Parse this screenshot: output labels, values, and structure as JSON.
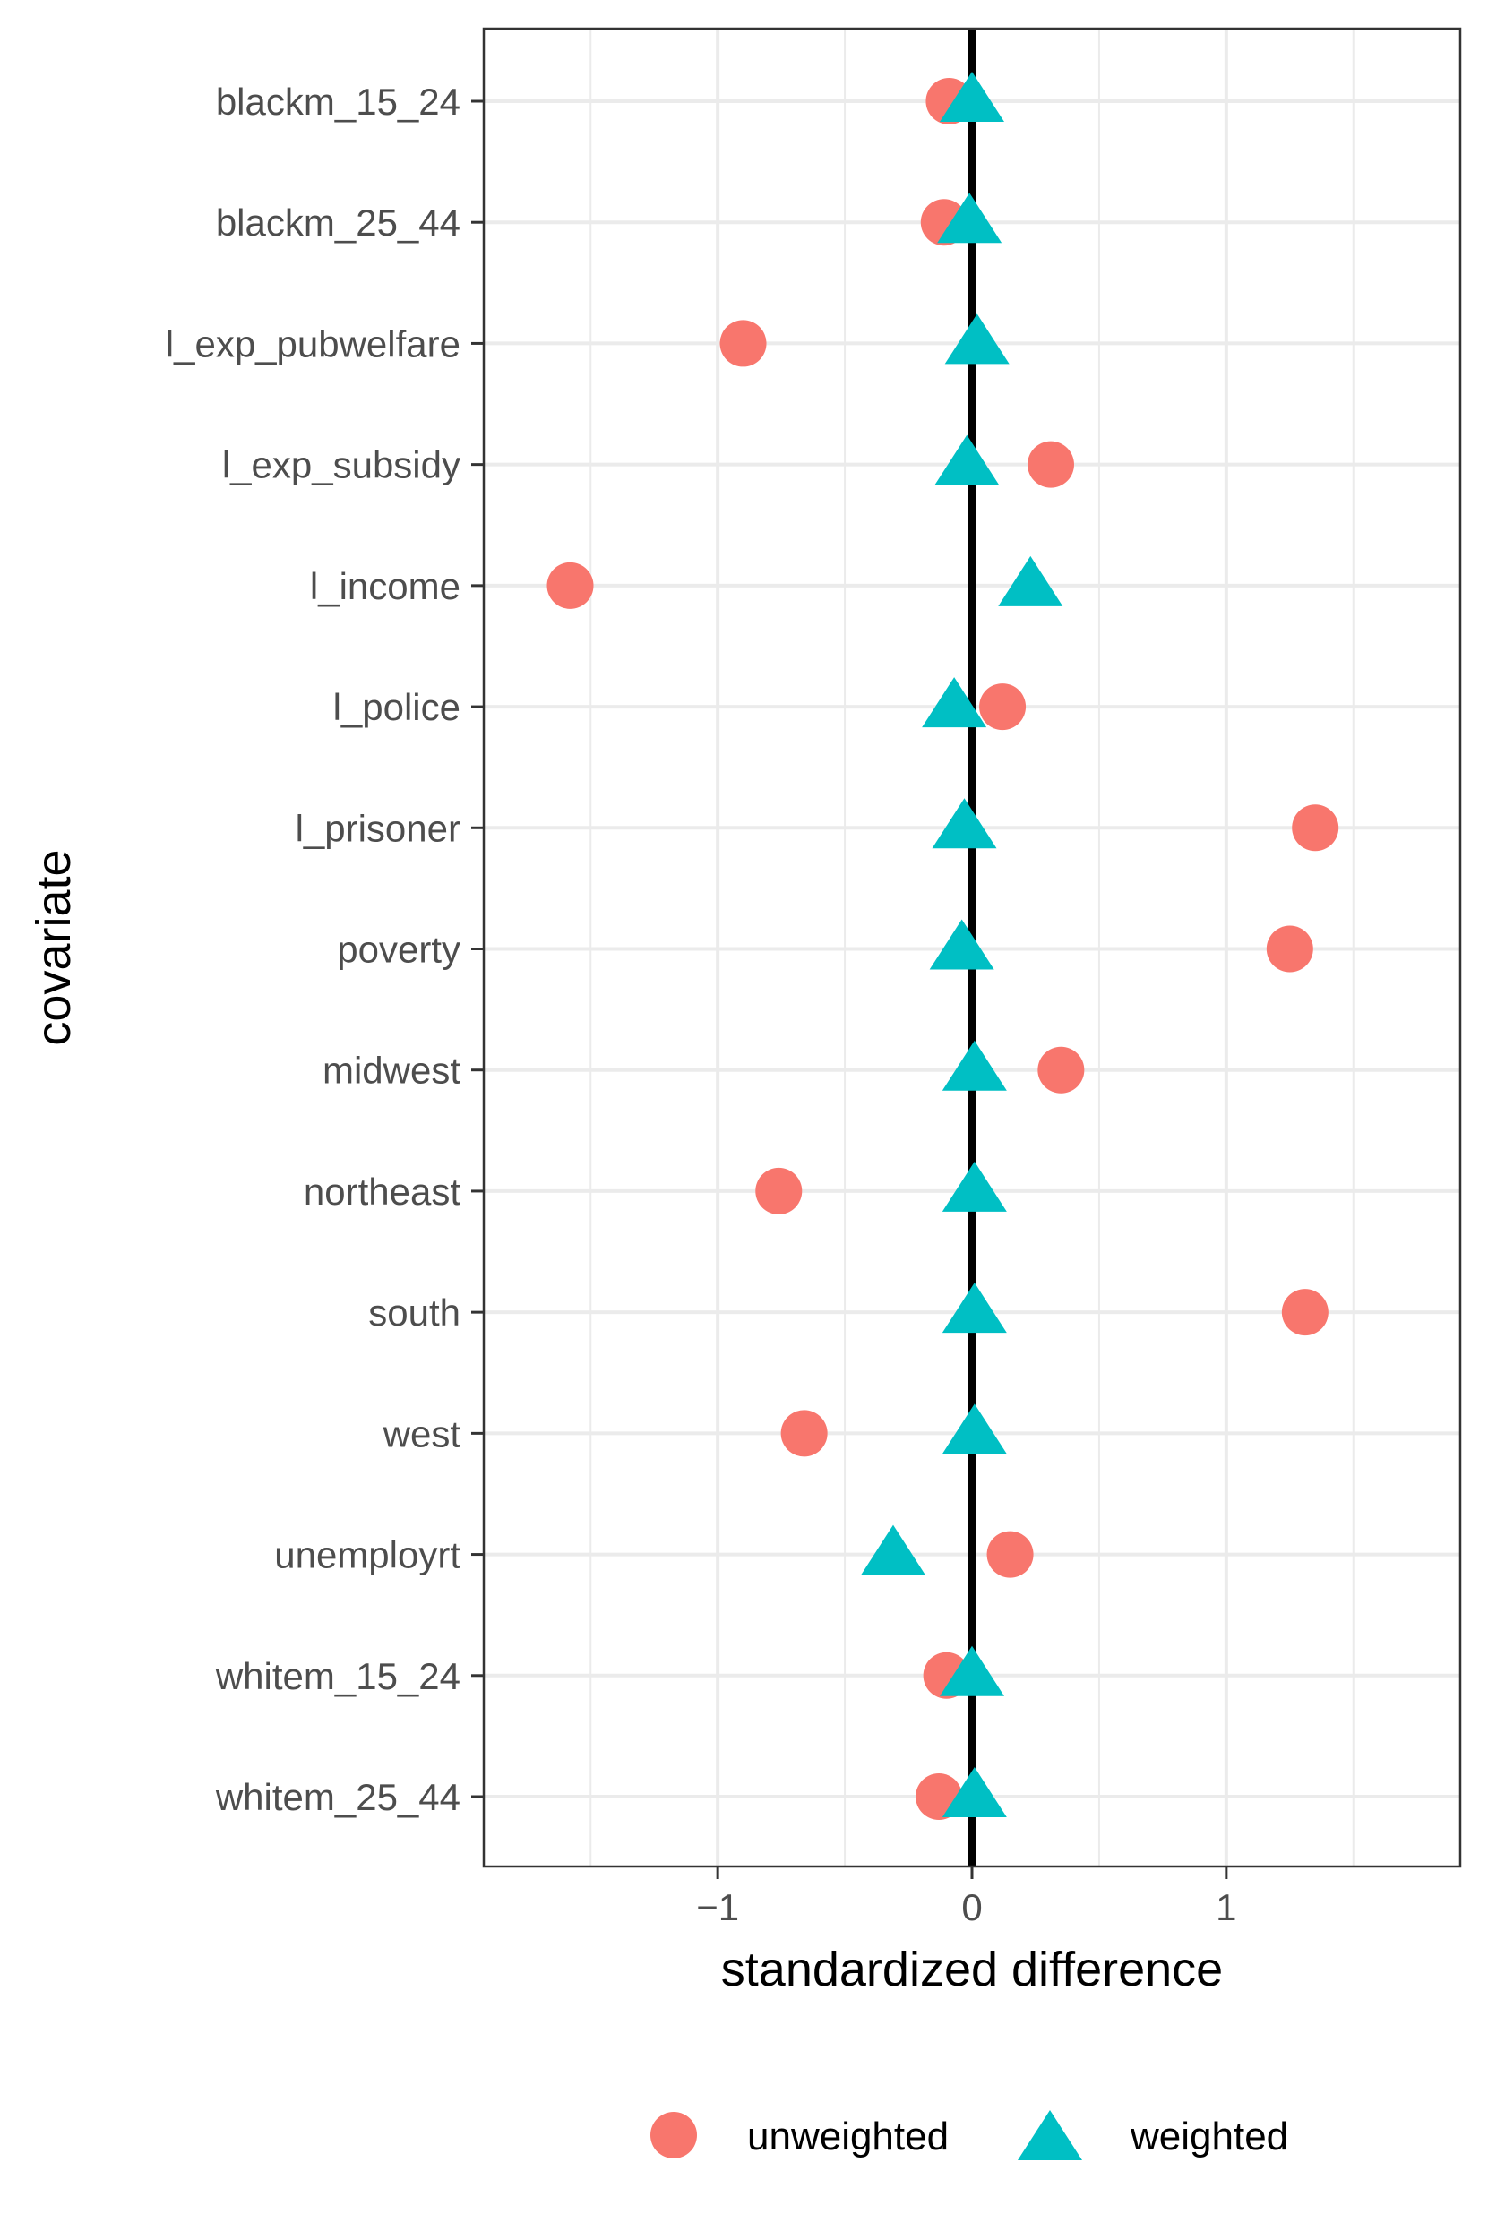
{
  "chart_data": {
    "type": "scatter",
    "xlabel": "standardized difference",
    "ylabel": "covariate",
    "xlim": [
      -1.92,
      1.92
    ],
    "x_ticks": [
      -1,
      0,
      1
    ],
    "x_tick_labels": [
      "−1",
      "0",
      "1"
    ],
    "reference_line_x": 0,
    "grid": true,
    "legend_position": "bottom",
    "categories": [
      "blackm_15_24",
      "blackm_25_44",
      "l_exp_pubwelfare",
      "l_exp_subsidy",
      "l_income",
      "l_police",
      "l_prisoner",
      "poverty",
      "midwest",
      "northeast",
      "south",
      "west",
      "unemployrt",
      "whitem_15_24",
      "whitem_25_44"
    ],
    "series": [
      {
        "name": "unweighted",
        "marker": "circle",
        "color": "#F8766D",
        "values": [
          -0.09,
          -0.11,
          -0.9,
          0.31,
          -1.58,
          0.12,
          1.35,
          1.25,
          0.35,
          -0.76,
          1.31,
          -0.66,
          0.15,
          -0.1,
          -0.13
        ]
      },
      {
        "name": "weighted",
        "marker": "triangle",
        "color": "#00BFC4",
        "values": [
          0.0,
          -0.01,
          0.02,
          -0.02,
          0.23,
          -0.07,
          -0.03,
          -0.04,
          0.01,
          0.01,
          0.01,
          0.01,
          -0.31,
          0.0,
          0.01
        ]
      }
    ]
  }
}
